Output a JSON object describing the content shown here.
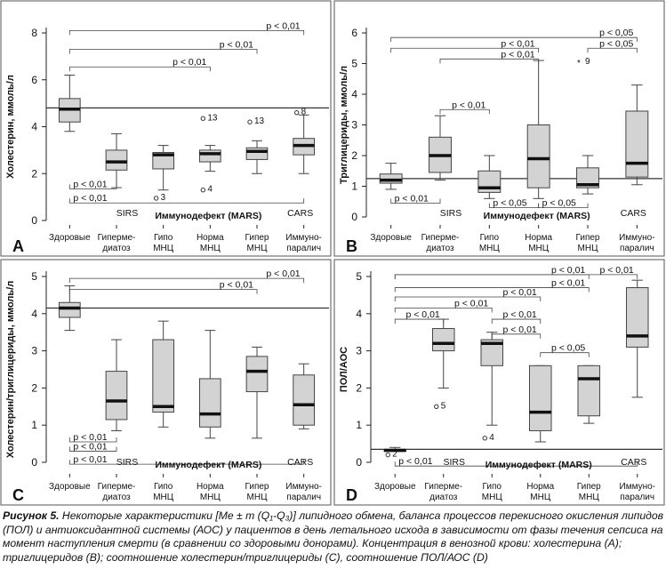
{
  "categories": [
    "Здоровые",
    "Гиперме-\nдиатоз",
    "Гипо\nМНЦ",
    "Норма\nМНЦ",
    "Гипер\nМНЦ",
    "Иммуно-\nпаралич"
  ],
  "group_labels": {
    "sirs": "SIRS",
    "mars": "Иммунодефект (MARS)",
    "cars": "CARS"
  },
  "caption": {
    "label": "Рисунок 5.",
    "text": "Некоторые характеристики [Me ± m (Q₁-Q₃)] липидного обмена, баланса процессов перекисного окисления липидов (ПОЛ) и антиоксидантной системы (АОС) у пациентов в день летального исхода в зависимости от фазы течения сепсиса на момент наступления смерти (в сравнении со здоровыми донорами). Концентрация в венозной крови: холестерина (A); триглицеридов (B); соотношение холестерин/триглицериды (C), соотношение ПОЛ/АОС (D)"
  },
  "chart_data": [
    {
      "type": "box",
      "panel": "A",
      "ylabel": "Холестерин, ммоль/л",
      "ylim": [
        0,
        8
      ],
      "yticks": [
        0,
        2,
        4,
        6,
        8
      ],
      "reference_line": 4.8,
      "categories": [
        "Здоровые",
        "Гиперме-диатоз",
        "Гипо МНЦ",
        "Норма МНЦ",
        "Гипер МНЦ",
        "Иммуно-паралич"
      ],
      "boxes": [
        {
          "min": 3.8,
          "q1": 4.2,
          "median": 4.75,
          "q3": 5.2,
          "max": 6.2
        },
        {
          "min": 1.4,
          "q1": 2.15,
          "median": 2.5,
          "q3": 3.0,
          "max": 3.7
        },
        {
          "min": 1.3,
          "q1": 2.2,
          "median": 2.8,
          "q3": 2.9,
          "max": 3.2
        },
        {
          "min": 2.1,
          "q1": 2.5,
          "median": 2.85,
          "q3": 3.0,
          "max": 3.2
        },
        {
          "min": 2.0,
          "q1": 2.6,
          "median": 2.95,
          "q3": 3.1,
          "max": 3.4
        },
        {
          "min": 2.0,
          "q1": 2.8,
          "median": 3.2,
          "q3": 3.5,
          "max": 4.5
        }
      ],
      "outliers": [
        {
          "cat": 2,
          "value": 0.95,
          "label": "3"
        },
        {
          "cat": 3,
          "value": 1.3,
          "label": "4"
        },
        {
          "cat": 3,
          "value": 4.35,
          "label": "13"
        },
        {
          "cat": 4,
          "value": 4.2,
          "label": "13"
        },
        {
          "cat": 5,
          "value": 4.6,
          "label": "8"
        }
      ],
      "brackets": [
        {
          "from": 0,
          "to": 5,
          "y": 8.1,
          "label": "p < 0,01",
          "side": "top"
        },
        {
          "from": 0,
          "to": 4,
          "y": 7.3,
          "label": "p < 0,01",
          "side": "top"
        },
        {
          "from": 0,
          "to": 3,
          "y": 6.55,
          "label": "p < 0,01",
          "side": "top"
        },
        {
          "from": 0,
          "to": 1,
          "y": 1.35,
          "label": "p < 0,01",
          "side": "bottom"
        },
        {
          "from": 0,
          "to": 5,
          "y": 0.75,
          "label": "p < 0,01",
          "side": "bottom"
        }
      ]
    },
    {
      "type": "box",
      "panel": "B",
      "ylabel": "Триглицериды, ммоль/л",
      "ylim": [
        0,
        6
      ],
      "yticks": [
        0,
        1,
        2,
        3,
        4,
        5,
        6
      ],
      "reference_line": 1.25,
      "categories": [
        "Здоровые",
        "Гиперме-диатоз",
        "Гипо МНЦ",
        "Норма МНЦ",
        "Гипер МНЦ",
        "Иммуно-паралич"
      ],
      "boxes": [
        {
          "min": 0.9,
          "q1": 1.1,
          "median": 1.2,
          "q3": 1.4,
          "max": 1.75
        },
        {
          "min": 1.2,
          "q1": 1.45,
          "median": 2.0,
          "q3": 2.6,
          "max": 3.3
        },
        {
          "min": 0.6,
          "q1": 0.8,
          "median": 0.95,
          "q3": 1.5,
          "max": 2.0
        },
        {
          "min": 0.6,
          "q1": 0.95,
          "median": 1.9,
          "q3": 3.0,
          "max": 5.1
        },
        {
          "min": 0.75,
          "q1": 0.95,
          "median": 1.05,
          "q3": 1.6,
          "max": 2.0
        },
        {
          "min": 1.05,
          "q1": 1.3,
          "median": 1.75,
          "q3": 3.45,
          "max": 4.3
        }
      ],
      "outliers": [
        {
          "cat": 4,
          "value": 5.05,
          "label": "9",
          "marker": "*"
        }
      ],
      "brackets": [
        {
          "from": 0,
          "to": 5,
          "y": 5.85,
          "label": "p < 0,05",
          "side": "top"
        },
        {
          "from": 0,
          "to": 3,
          "y": 5.5,
          "label": "p < 0,01",
          "side": "top"
        },
        {
          "from": 1,
          "to": 3,
          "y": 5.15,
          "label": "p < 0,01",
          "side": "top"
        },
        {
          "from": 4,
          "to": 5,
          "y": 5.5,
          "label": "p < 0,05",
          "side": "top"
        },
        {
          "from": 1,
          "to": 2,
          "y": 3.5,
          "label": "p < 0,01",
          "side": "top"
        },
        {
          "from": 0,
          "to": 1,
          "y": 0.45,
          "label": "p < 0,01",
          "side": "bottom"
        },
        {
          "from": 2,
          "to": 3,
          "y": 0.3,
          "label": "p < 0,05",
          "side": "bottom"
        },
        {
          "from": 3,
          "to": 4,
          "y": 0.3,
          "label": "p < 0,05",
          "side": "bottom"
        }
      ]
    },
    {
      "type": "box",
      "panel": "C",
      "ylabel": "Холестерин/триглицериды, ммоль/л",
      "ylim": [
        0,
        5
      ],
      "yticks": [
        0,
        1,
        2,
        3,
        4,
        5
      ],
      "reference_line": 4.15,
      "categories": [
        "Здоровые",
        "Гиперме-диатоз",
        "Гипо МНЦ",
        "Норма МНЦ",
        "Гипер МНЦ",
        "Иммуно-паралич"
      ],
      "boxes": [
        {
          "min": 3.55,
          "q1": 3.9,
          "median": 4.15,
          "q3": 4.3,
          "max": 4.75
        },
        {
          "min": 0.85,
          "q1": 1.15,
          "median": 1.65,
          "q3": 2.45,
          "max": 3.3
        },
        {
          "min": 0.95,
          "q1": 1.35,
          "median": 1.5,
          "q3": 3.3,
          "max": 3.8
        },
        {
          "min": 0.65,
          "q1": 0.95,
          "median": 1.3,
          "q3": 2.25,
          "max": 3.55
        },
        {
          "min": 0.65,
          "q1": 1.9,
          "median": 2.45,
          "q3": 2.85,
          "max": 3.1
        },
        {
          "min": 0.9,
          "q1": 1.0,
          "median": 1.55,
          "q3": 2.35,
          "max": 2.65
        }
      ],
      "outliers": [],
      "brackets": [
        {
          "from": 0,
          "to": 5,
          "y": 4.95,
          "label": "p < 0,01",
          "side": "top"
        },
        {
          "from": 0,
          "to": 4,
          "y": 4.65,
          "label": "p < 0,01",
          "side": "top"
        },
        {
          "from": 0,
          "to": 1,
          "y": 0.55,
          "label": "p < 0,01",
          "side": "bottom"
        },
        {
          "from": 0,
          "to": 1,
          "y": 0.3,
          "label": "p < 0,01",
          "side": "bottom"
        },
        {
          "from": 0,
          "to": 5,
          "y": -0.05,
          "label": "p < 0,01",
          "side": "bottom"
        }
      ]
    },
    {
      "type": "box",
      "panel": "D",
      "ylabel": "ПОЛ/АОС",
      "ylim": [
        0,
        5
      ],
      "yticks": [
        0,
        1,
        2,
        3,
        4,
        5
      ],
      "reference_line": 0.35,
      "categories": [
        "Здоровые",
        "Гиперме-диатоз",
        "Гипо МНЦ",
        "Норма МНЦ",
        "Гипер МНЦ",
        "Иммуно-паралич"
      ],
      "boxes": [
        {
          "min": 0.3,
          "q1": 0.3,
          "median": 0.32,
          "q3": 0.35,
          "max": 0.4
        },
        {
          "min": 2.0,
          "q1": 3.0,
          "median": 3.2,
          "q3": 3.6,
          "max": 3.85
        },
        {
          "min": 1.0,
          "q1": 2.6,
          "median": 3.2,
          "q3": 3.3,
          "max": 3.5
        },
        {
          "min": 0.55,
          "q1": 0.85,
          "median": 1.35,
          "q3": 2.6,
          "max": 2.6
        },
        {
          "min": 1.05,
          "q1": 1.25,
          "median": 2.25,
          "q3": 2.6,
          "max": 2.6
        },
        {
          "min": 1.75,
          "q1": 3.1,
          "median": 3.4,
          "q3": 4.7,
          "max": 4.9
        }
      ],
      "outliers": [
        {
          "cat": 0,
          "value": 0.2,
          "label": "2"
        },
        {
          "cat": 1,
          "value": 1.5,
          "label": "5"
        },
        {
          "cat": 2,
          "value": 0.65,
          "label": "4"
        }
      ],
      "brackets": [
        {
          "from": 0,
          "to": 4,
          "y": 5.05,
          "label": "p < 0,01",
          "side": "top"
        },
        {
          "from": 0,
          "to": 5,
          "y": 5.05,
          "label": "p < 0,01",
          "side": "top"
        },
        {
          "from": 0,
          "to": 4,
          "y": 4.7,
          "label": "p < 0,01",
          "side": "top"
        },
        {
          "from": 0,
          "to": 3,
          "y": 4.45,
          "label": "p < 0,01",
          "side": "top"
        },
        {
          "from": 0,
          "to": 2,
          "y": 4.15,
          "label": "p < 0,01",
          "side": "top"
        },
        {
          "from": 0,
          "to": 1,
          "y": 3.85,
          "label": "p < 0,01",
          "side": "top"
        },
        {
          "from": 2,
          "to": 3,
          "y": 3.85,
          "label": "p < 0,01",
          "side": "top"
        },
        {
          "from": 2,
          "to": 3,
          "y": 3.45,
          "label": "p < 0,01",
          "side": "top"
        },
        {
          "from": 3,
          "to": 4,
          "y": 2.95,
          "label": "p < 0,05",
          "side": "top"
        },
        {
          "from": 0,
          "to": 5,
          "y": -0.1,
          "label": "p < 0,01",
          "side": "bottom"
        }
      ]
    }
  ]
}
